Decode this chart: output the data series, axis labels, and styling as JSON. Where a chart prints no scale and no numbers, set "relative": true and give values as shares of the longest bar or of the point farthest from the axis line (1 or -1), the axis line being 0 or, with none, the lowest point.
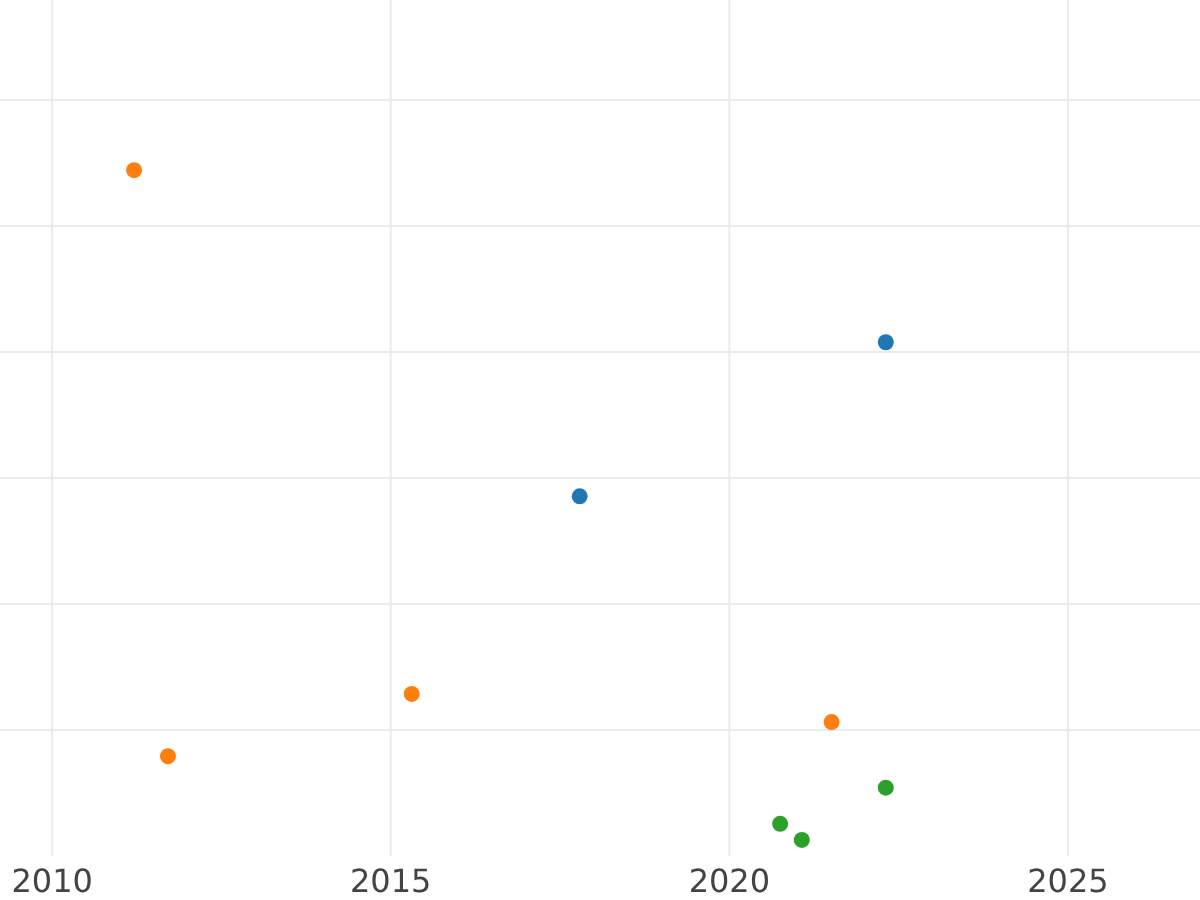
{
  "chart_data": {
    "type": "scatter",
    "relative": true,
    "xlim": [
      2009.23,
      2026.95
    ],
    "xticks": [
      2010,
      2015,
      2020,
      2025
    ],
    "grid": true,
    "marker": "circle",
    "series": [
      {
        "color": "#1f77b4",
        "x": [
          2017.79,
          2022.31
        ],
        "values": [
          0.513,
          0.743
        ]
      },
      {
        "color": "#ff7f0e",
        "x": [
          2011.21,
          2011.71,
          2015.31,
          2021.51
        ],
        "values": [
          1,
          0.125,
          0.218,
          0.176
        ]
      },
      {
        "color": "#2ca02c",
        "x": [
          2020.75,
          2021.07,
          2022.31
        ],
        "values": [
          0.024,
          0,
          0.078
        ]
      }
    ]
  }
}
